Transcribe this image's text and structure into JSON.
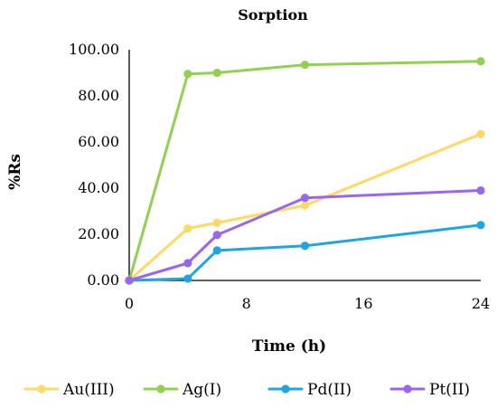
{
  "chart_data": {
    "type": "line",
    "title": "Sorption",
    "xlabel": "Time (h)",
    "ylabel": "%Rs",
    "xlim": [
      0,
      24
    ],
    "ylim": [
      0,
      100
    ],
    "x_ticks": [
      "0",
      "8",
      "16",
      "24"
    ],
    "x_tick_values": [
      0,
      8,
      16,
      24
    ],
    "y_ticks": [
      "0.00",
      "20.00",
      "40.00",
      "60.00",
      "80.00",
      "100.00"
    ],
    "y_tick_values": [
      0,
      20,
      40,
      60,
      80,
      100
    ],
    "grid": false,
    "legend_position": "bottom",
    "x": [
      0,
      4,
      6,
      12,
      24
    ],
    "series": [
      {
        "name": "Au(III)",
        "color": "#ffd966",
        "values": [
          0,
          22.5,
          25,
          32.5,
          63.5
        ]
      },
      {
        "name": "Ag(I)",
        "color": "#92d050",
        "values": [
          0,
          89.5,
          90,
          93.5,
          95
        ]
      },
      {
        "name": "Pd(II)",
        "color": "#1fa6e0",
        "values": [
          0,
          0.8,
          13,
          15,
          24
        ]
      },
      {
        "name": "Pt(II)",
        "color": "#9966ee",
        "values": [
          0,
          7.5,
          19.7,
          35.8,
          39
        ]
      }
    ]
  }
}
